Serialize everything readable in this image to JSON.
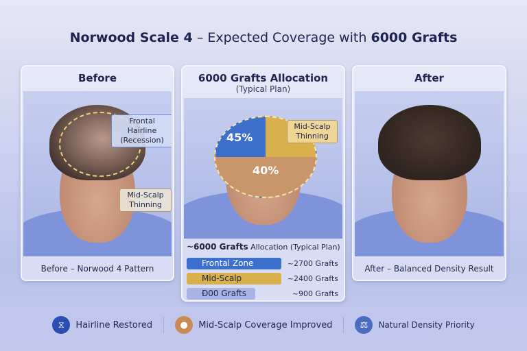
{
  "title": {
    "pre": "Norwood Scale 4",
    "mid": " – Expected Coverage with ",
    "bold": "6000 Grafts"
  },
  "before": {
    "heading": "Before",
    "label_frontal": "Frontal Hairline (Recession)",
    "label_mid": "Mid-Scalp Thinning",
    "caption": "Before – Norwood 4 Pattern"
  },
  "middle": {
    "heading": "6000 Grafts Allocation",
    "subheading": "(Typical Plan)",
    "pct_frontal": "45%",
    "pct_mid": "40%",
    "label_mid": "Mid-Scalp Thinning",
    "summary_bold": "~6000 Grafts",
    "summary_rest": " Allocation (Typical Plan)",
    "rows": [
      {
        "label": "Frontal Zone",
        "value": "~2700 Grafts",
        "color": "#3d6fcc"
      },
      {
        "label": "Mid-Scalp",
        "value": "~2400 Grafts",
        "color": "#d9b04c"
      },
      {
        "label": "Ð00 Grafts",
        "value": "~900 Grafts",
        "color": "#a9b3e6"
      }
    ]
  },
  "after": {
    "heading": "After",
    "caption": "After – Balanced Density Result"
  },
  "footer": [
    {
      "icon": "dna-icon",
      "label": "Hairline Restored",
      "color": "#2a4fb0"
    },
    {
      "icon": "location-pin-icon",
      "label": "Mid-Scalp Coverage Improved",
      "color": "#c98a55"
    },
    {
      "icon": "scale-balance-icon",
      "label": "Natural Density Priority",
      "color": "#4a6dc0"
    }
  ]
}
